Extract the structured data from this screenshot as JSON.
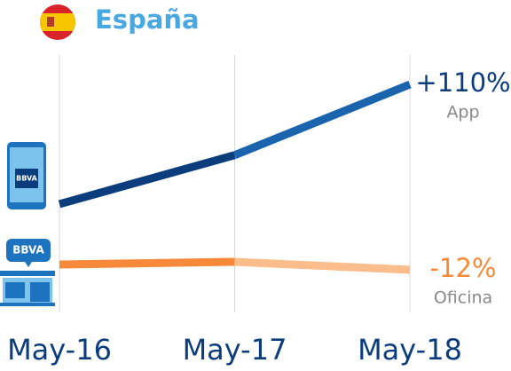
{
  "chart_data": {
    "type": "line",
    "title": "España",
    "categories": [
      "May-16",
      "May-17",
      "May-18"
    ],
    "series": [
      {
        "name": "App",
        "color": "#1a63ad",
        "segment_colors": [
          "#0b3c7c",
          "#1a63ad"
        ],
        "label_color": "#0b3c7c",
        "values": [
          0,
          45,
          110
        ],
        "value_labels": [
          null,
          null,
          "+110%"
        ],
        "ylim": [
          -98,
          155
        ]
      },
      {
        "name": "Oficina",
        "color": "#f7893a",
        "segment_colors": [
          "#f7893a",
          "#fbbd8c"
        ],
        "label_color": "#f7893a",
        "values": [
          0,
          6,
          -12
        ],
        "value_labels": [
          null,
          null,
          "-12%"
        ],
        "ylim": [
          -104,
          516
        ]
      }
    ],
    "grid": true
  },
  "icons": {
    "phone_logo": "BBVA",
    "branch_logo": "BBVA"
  }
}
